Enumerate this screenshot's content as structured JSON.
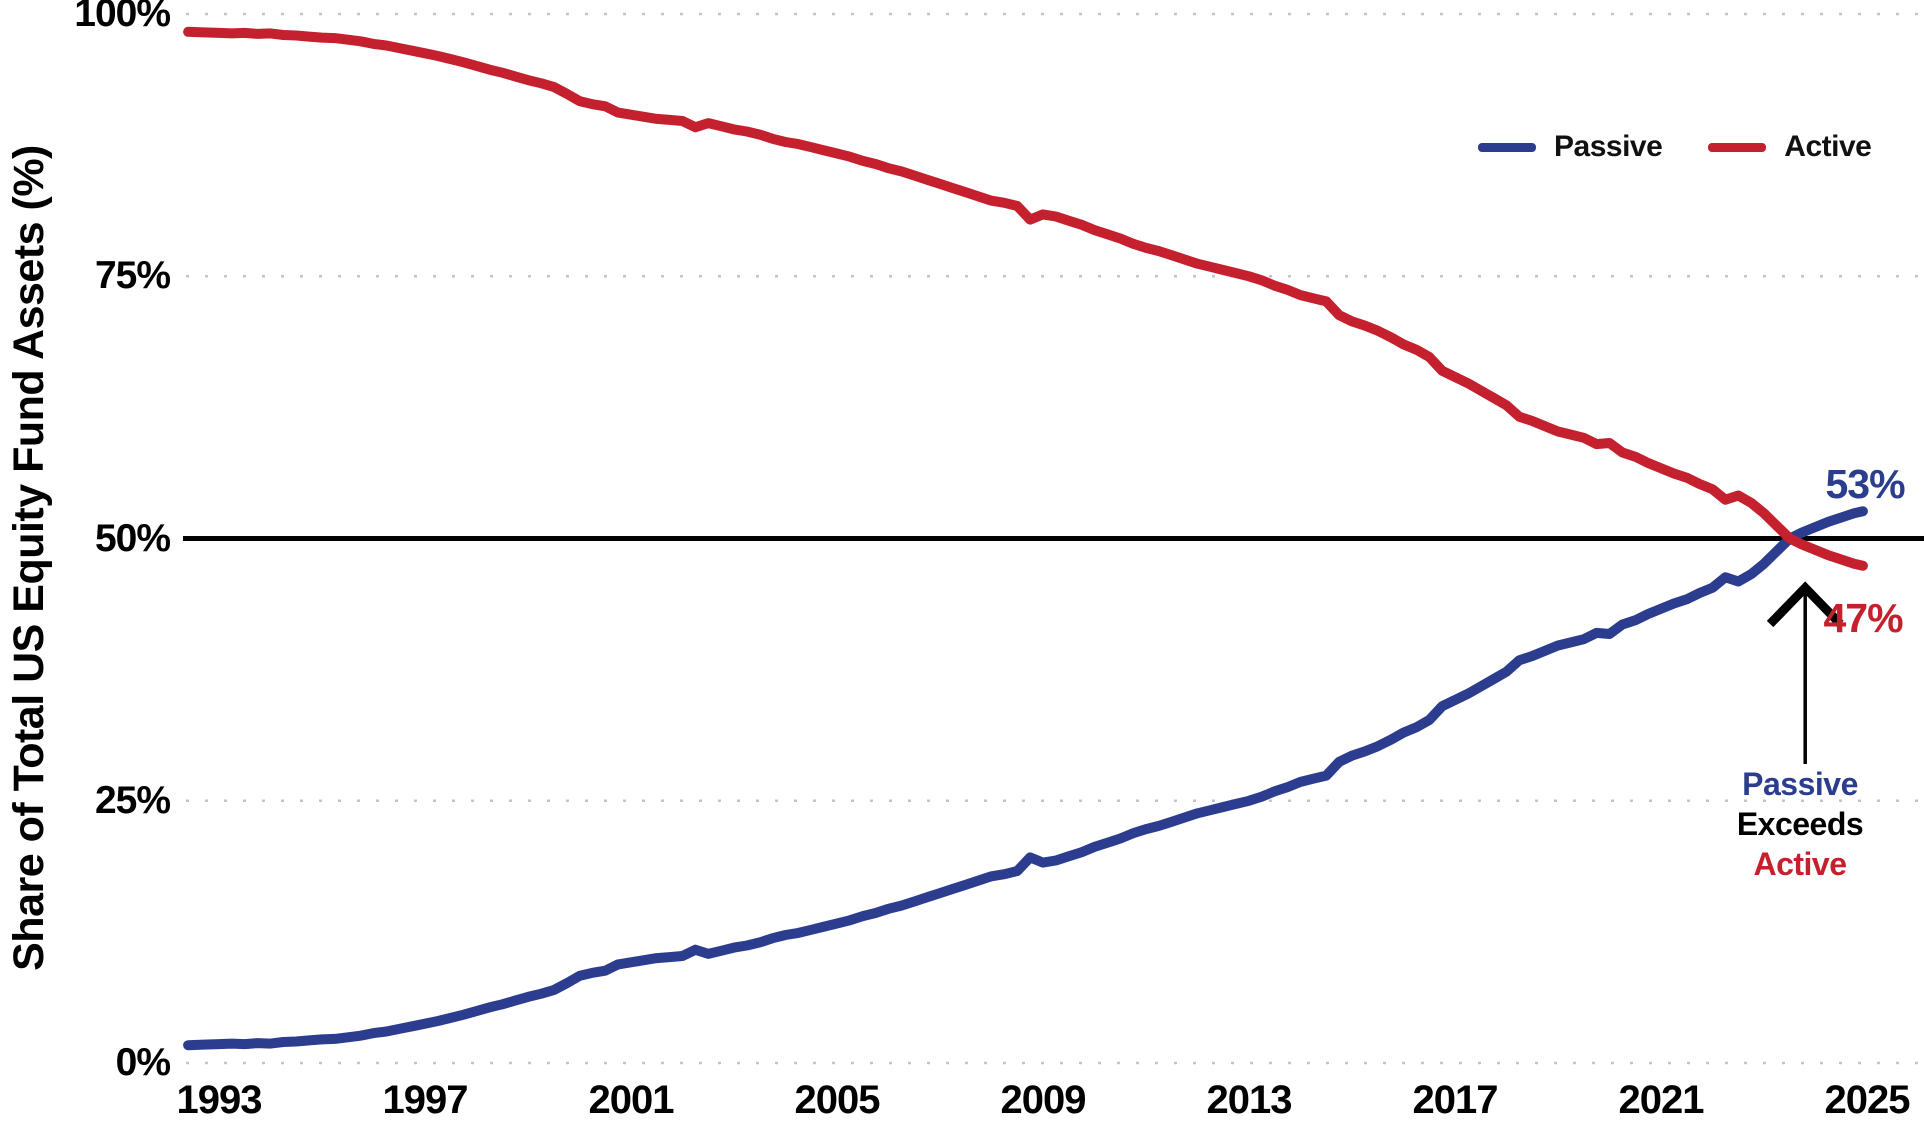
{
  "chart_data": {
    "type": "line",
    "ylabel": "Share of Total US Equity Fund Assets (%)",
    "y_ticks": [
      {
        "label": "100%",
        "value": 100
      },
      {
        "label": "75%",
        "value": 75
      },
      {
        "label": "50%",
        "value": 50
      },
      {
        "label": "25%",
        "value": 25
      },
      {
        "label": "0%",
        "value": 0
      }
    ],
    "x_ticks": [
      {
        "label": "1993",
        "year": 1993
      },
      {
        "label": "1997",
        "year": 1997
      },
      {
        "label": "2001",
        "year": 2001
      },
      {
        "label": "2005",
        "year": 2005
      },
      {
        "label": "2009",
        "year": 2009
      },
      {
        "label": "2013",
        "year": 2013
      },
      {
        "label": "2017",
        "year": 2017
      },
      {
        "label": "2021",
        "year": 2021
      },
      {
        "label": "2025",
        "year": 2025
      }
    ],
    "y_gridlines_dotted": [
      100,
      75,
      25,
      0
    ],
    "reference_line": {
      "value": 50,
      "color": "#000000",
      "style": "solid"
    },
    "x_range": [
      1992.4,
      2025.6
    ],
    "y_range": [
      0,
      100
    ],
    "grid_color": "#c4c4c4",
    "legend": {
      "position": "top-right",
      "items": [
        {
          "label": "Passive",
          "color": "#2c3d8f"
        },
        {
          "label": "Active",
          "color": "#c5202e"
        }
      ]
    },
    "years": [
      1992.4,
      1992.7,
      1993,
      1993.25,
      1993.5,
      1993.75,
      1994,
      1994.25,
      1994.5,
      1994.75,
      1995,
      1995.25,
      1995.5,
      1995.75,
      1996,
      1996.25,
      1996.5,
      1996.75,
      1997,
      1997.25,
      1997.5,
      1997.75,
      1998,
      1998.25,
      1998.5,
      1998.75,
      1999,
      1999.25,
      1999.5,
      1999.75,
      2000,
      2000.25,
      2000.5,
      2000.75,
      2001,
      2001.25,
      2001.5,
      2001.75,
      2002,
      2002.25,
      2002.5,
      2002.75,
      2003,
      2003.25,
      2003.5,
      2003.75,
      2004,
      2004.25,
      2004.5,
      2004.75,
      2005,
      2005.25,
      2005.5,
      2005.75,
      2006,
      2006.25,
      2006.5,
      2006.75,
      2007,
      2007.25,
      2007.5,
      2007.75,
      2008,
      2008.25,
      2008.5,
      2008.75,
      2009,
      2009.25,
      2009.5,
      2009.75,
      2010,
      2010.25,
      2010.5,
      2010.75,
      2011,
      2011.25,
      2011.5,
      2011.75,
      2012,
      2012.25,
      2012.5,
      2012.75,
      2013,
      2013.25,
      2013.5,
      2013.75,
      2014,
      2014.25,
      2014.5,
      2014.75,
      2015,
      2015.25,
      2015.5,
      2015.75,
      2016,
      2016.25,
      2016.5,
      2016.75,
      2017,
      2017.25,
      2017.5,
      2017.75,
      2018,
      2018.25,
      2018.5,
      2018.75,
      2019,
      2019.25,
      2019.5,
      2019.75,
      2020,
      2020.25,
      2020.5,
      2020.75,
      2021,
      2021.25,
      2021.5,
      2021.75,
      2022,
      2022.25,
      2022.5,
      2022.75,
      2023,
      2023.25,
      2023.5,
      2023.75,
      2024,
      2024.25,
      2024.5,
      2024.75,
      2024.92
    ],
    "series": [
      {
        "name": "Passive",
        "color": "#2c3d8f",
        "end_label": "53%",
        "values": [
          1.7,
          1.75,
          1.8,
          1.85,
          1.8,
          1.9,
          1.85,
          2.0,
          2.05,
          2.15,
          2.25,
          2.3,
          2.45,
          2.6,
          2.85,
          3.0,
          3.25,
          3.5,
          3.75,
          4.0,
          4.3,
          4.6,
          4.95,
          5.3,
          5.6,
          5.95,
          6.3,
          6.6,
          6.95,
          7.6,
          8.3,
          8.6,
          8.8,
          9.4,
          9.6,
          9.8,
          10.0,
          10.1,
          10.2,
          10.8,
          10.4,
          10.7,
          11.0,
          11.2,
          11.5,
          11.9,
          12.2,
          12.4,
          12.7,
          13.0,
          13.3,
          13.6,
          14.0,
          14.3,
          14.7,
          15.0,
          15.4,
          15.8,
          16.2,
          16.6,
          17.0,
          17.4,
          17.8,
          18.0,
          18.3,
          19.6,
          19.1,
          19.3,
          19.7,
          20.1,
          20.6,
          21.0,
          21.4,
          21.9,
          22.3,
          22.6,
          23.0,
          23.4,
          23.8,
          24.1,
          24.4,
          24.7,
          25.0,
          25.4,
          25.9,
          26.3,
          26.8,
          27.1,
          27.4,
          28.7,
          29.3,
          29.7,
          30.2,
          30.8,
          31.5,
          32.0,
          32.7,
          34.0,
          34.6,
          35.2,
          35.9,
          36.6,
          37.3,
          38.4,
          38.8,
          39.3,
          39.8,
          40.1,
          40.4,
          41.0,
          40.9,
          41.8,
          42.2,
          42.8,
          43.3,
          43.8,
          44.2,
          44.8,
          45.3,
          46.3,
          45.9,
          46.6,
          47.6,
          48.8,
          50.0,
          50.6,
          51.1,
          51.6,
          52.0,
          52.4,
          52.6
        ]
      },
      {
        "name": "Active",
        "color": "#c5202e",
        "end_label": "47%",
        "values": [
          98.3,
          98.25,
          98.2,
          98.15,
          98.2,
          98.1,
          98.15,
          98.0,
          97.95,
          97.85,
          97.75,
          97.7,
          97.55,
          97.4,
          97.15,
          97.0,
          96.75,
          96.5,
          96.25,
          96.0,
          95.7,
          95.4,
          95.05,
          94.7,
          94.4,
          94.05,
          93.7,
          93.4,
          93.05,
          92.4,
          91.7,
          91.4,
          91.2,
          90.6,
          90.4,
          90.2,
          90.0,
          89.9,
          89.8,
          89.2,
          89.6,
          89.3,
          89.0,
          88.8,
          88.5,
          88.1,
          87.8,
          87.6,
          87.3,
          87.0,
          86.7,
          86.4,
          86.0,
          85.7,
          85.3,
          85.0,
          84.6,
          84.2,
          83.8,
          83.4,
          83.0,
          82.6,
          82.2,
          82.0,
          81.7,
          80.4,
          80.9,
          80.7,
          80.3,
          79.9,
          79.4,
          79.0,
          78.6,
          78.1,
          77.7,
          77.4,
          77.0,
          76.6,
          76.2,
          75.9,
          75.6,
          75.3,
          75.0,
          74.6,
          74.1,
          73.7,
          73.2,
          72.9,
          72.6,
          71.3,
          70.7,
          70.3,
          69.8,
          69.2,
          68.5,
          68.0,
          67.3,
          66.0,
          65.4,
          64.8,
          64.1,
          63.4,
          62.7,
          61.6,
          61.2,
          60.7,
          60.2,
          59.9,
          59.6,
          59.0,
          59.1,
          58.2,
          57.8,
          57.2,
          56.7,
          56.2,
          55.8,
          55.2,
          54.7,
          53.7,
          54.1,
          53.4,
          52.4,
          51.2,
          50.0,
          49.4,
          48.9,
          48.4,
          48.0,
          47.6,
          47.4
        ]
      }
    ],
    "annotation": {
      "lines": [
        {
          "text": "Passive",
          "color": "#2c3d8f"
        },
        {
          "text": "Exceeds",
          "color": "#000000"
        },
        {
          "text": "Active",
          "color": "#c5202e"
        }
      ],
      "arrow": {
        "x_year": 2023.8,
        "from_value": 28.5,
        "to_value": 45.3,
        "color": "#000000"
      }
    }
  }
}
